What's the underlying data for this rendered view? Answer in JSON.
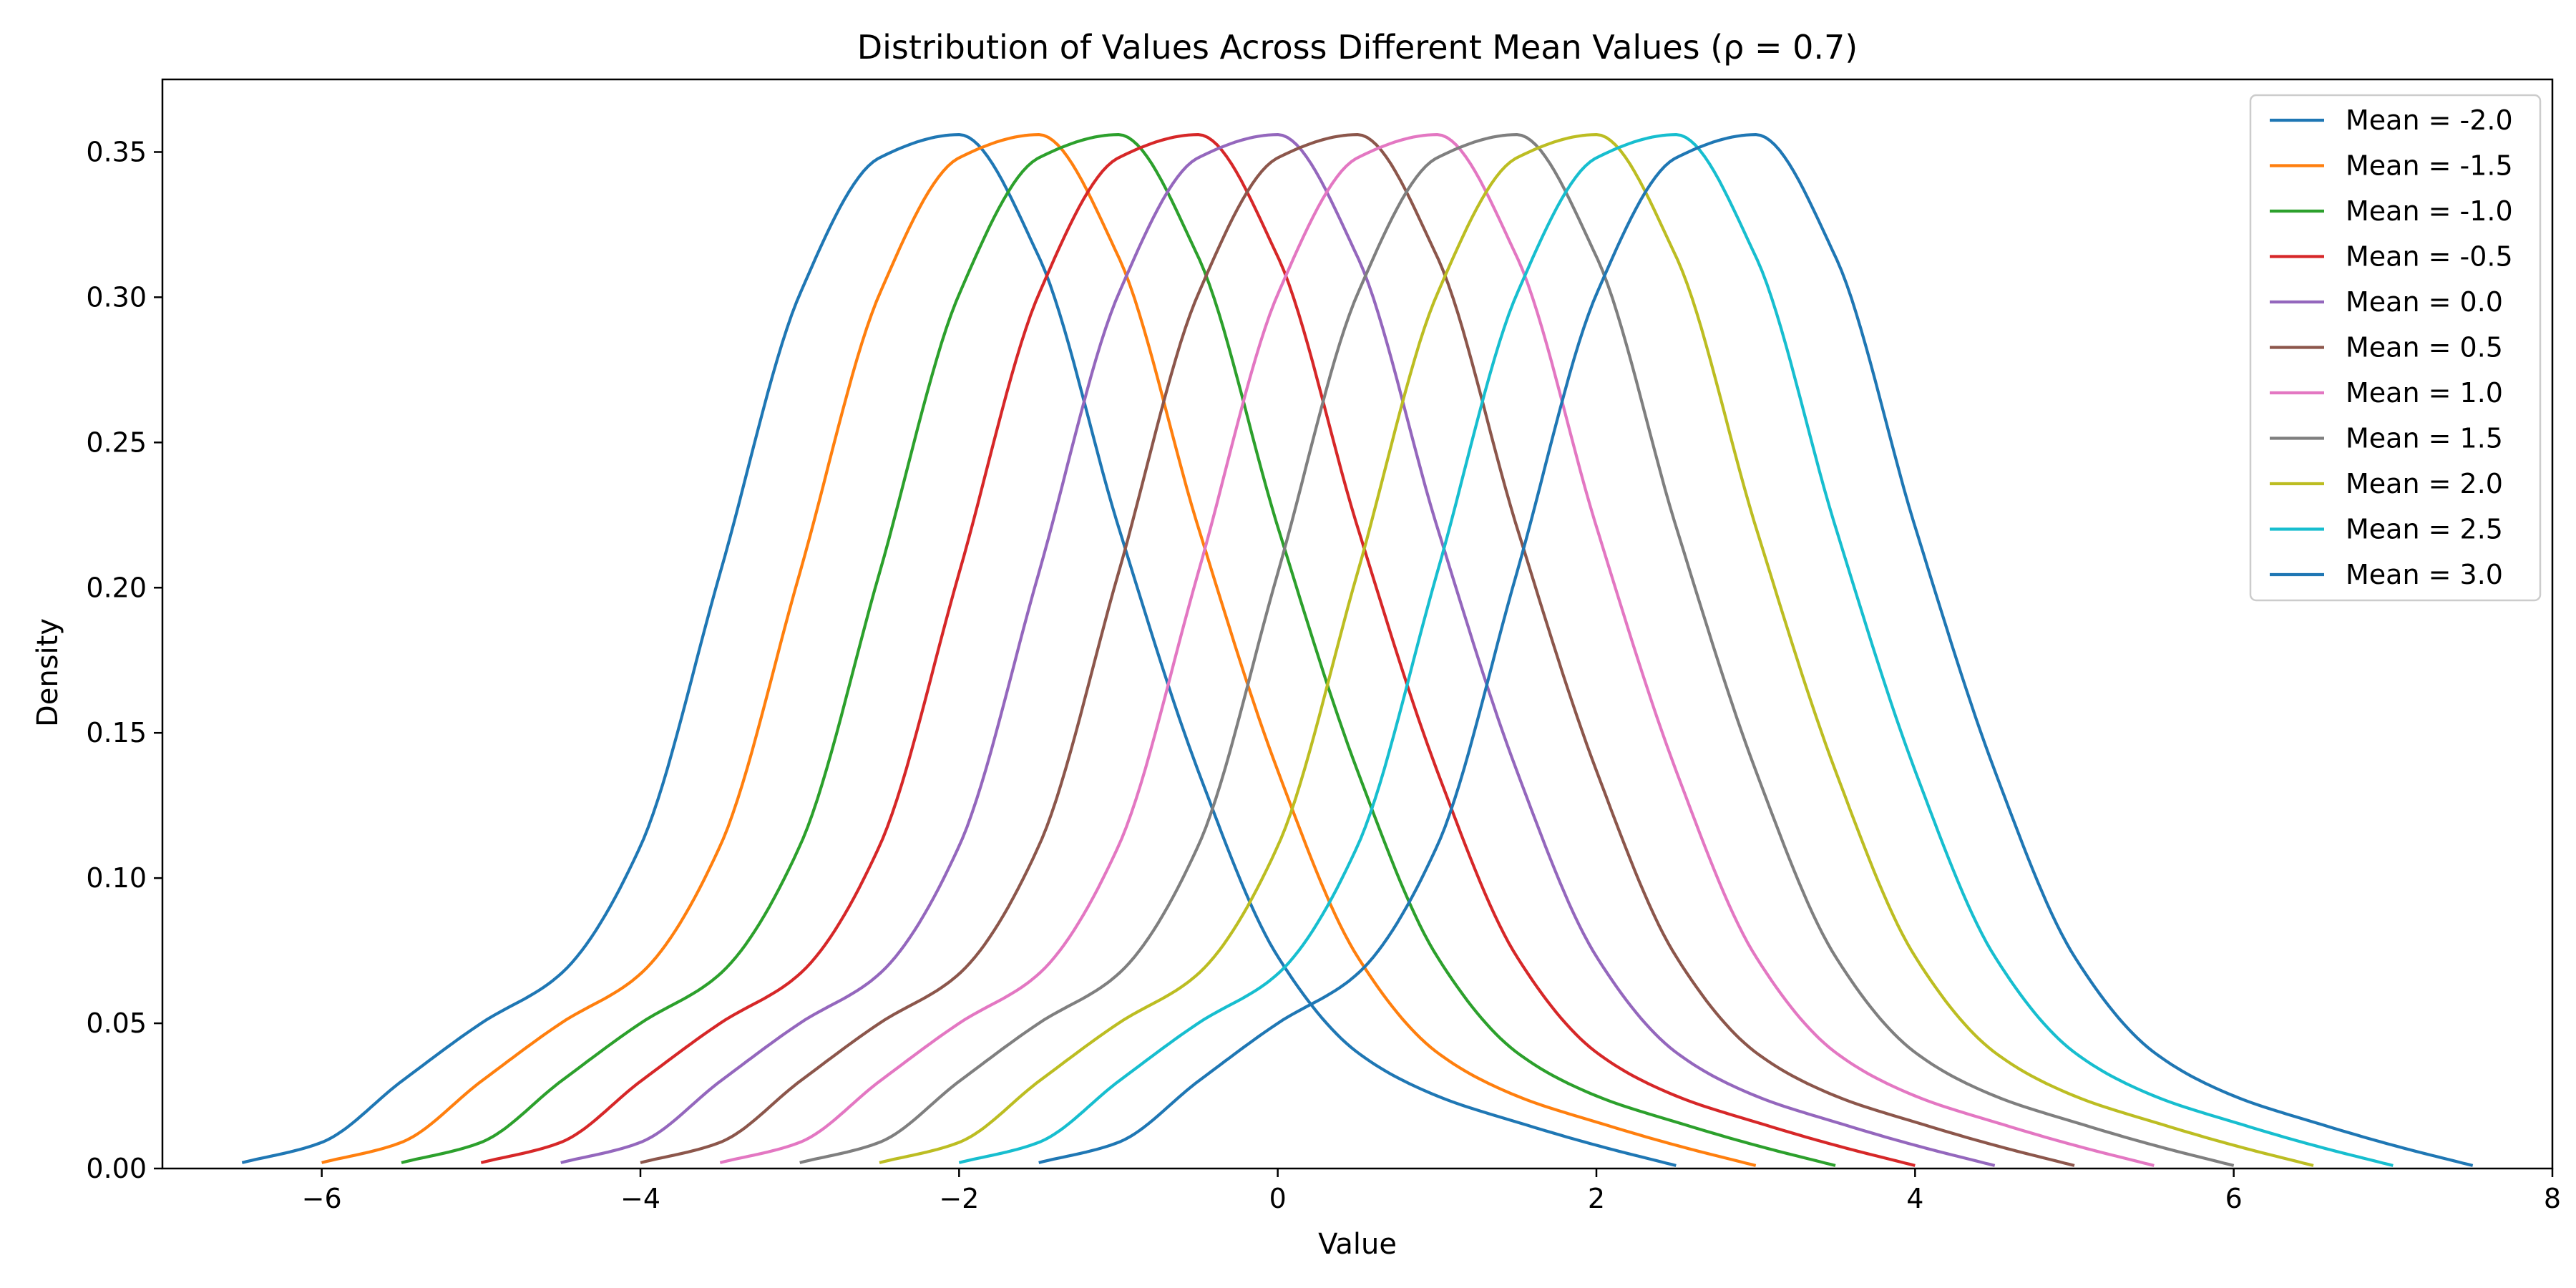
{
  "chart_data": {
    "type": "line",
    "title": "Distribution of Values Across Different Mean Values (ρ = 0.7)",
    "xlabel": "Value",
    "ylabel": "Density",
    "xlim": [
      -7.0,
      8.0
    ],
    "ylim": [
      0.0,
      0.375
    ],
    "xticks": [
      -6,
      -4,
      -2,
      0,
      2,
      4,
      6,
      8
    ],
    "xtick_labels": [
      "−6",
      "−4",
      "−2",
      "0",
      "2",
      "4",
      "6",
      "8"
    ],
    "yticks": [
      0.0,
      0.05,
      0.1,
      0.15,
      0.2,
      0.25,
      0.3,
      0.35
    ],
    "ytick_labels": [
      "0.00",
      "0.05",
      "0.10",
      "0.15",
      "0.20",
      "0.25",
      "0.30",
      "0.35"
    ],
    "grid": false,
    "legend_position": "top-right",
    "x": [
      -4.5,
      -4.0,
      -3.5,
      -3.0,
      -2.5,
      -2.0,
      -1.5,
      -1.0,
      -0.5,
      0.0,
      0.5,
      1.0,
      1.5,
      2.0,
      2.5,
      3.0,
      3.5,
      4.0,
      4.5
    ],
    "series": [
      {
        "name": "Mean = -2.0",
        "mean": -2.0,
        "color": "#1f77b4"
      },
      {
        "name": "Mean = -1.5",
        "mean": -1.5,
        "color": "#ff7f0e"
      },
      {
        "name": "Mean = -1.0",
        "mean": -1.0,
        "color": "#2ca02c"
      },
      {
        "name": "Mean = -0.5",
        "mean": -0.5,
        "color": "#d62728"
      },
      {
        "name": "Mean = 0.0",
        "mean": 0.0,
        "color": "#9467bd"
      },
      {
        "name": "Mean = 0.5",
        "mean": 0.5,
        "color": "#8c564b"
      },
      {
        "name": "Mean = 1.0",
        "mean": 1.0,
        "color": "#e377c2"
      },
      {
        "name": "Mean = 1.5",
        "mean": 1.5,
        "color": "#7f7f7f"
      },
      {
        "name": "Mean = 2.0",
        "mean": 2.0,
        "color": "#bcbd22"
      },
      {
        "name": "Mean = 2.5",
        "mean": 2.5,
        "color": "#17becf"
      },
      {
        "name": "Mean = 3.0",
        "mean": 3.0,
        "color": "#1f77b4"
      }
    ],
    "base_curve_offsets": [
      -4.5,
      -4.0,
      -3.5,
      -3.0,
      -2.5,
      -2.0,
      -1.5,
      -1.0,
      -0.5,
      0.0,
      0.5,
      1.0,
      1.5,
      2.0,
      2.5,
      3.0,
      3.5,
      4.0,
      4.5
    ],
    "base_curve_density": [
      0.002,
      0.009,
      0.03,
      0.05,
      0.067,
      0.111,
      0.205,
      0.301,
      0.348,
      0.356,
      0.314,
      0.221,
      0.137,
      0.073,
      0.04,
      0.025,
      0.016,
      0.008,
      0.001
    ]
  }
}
